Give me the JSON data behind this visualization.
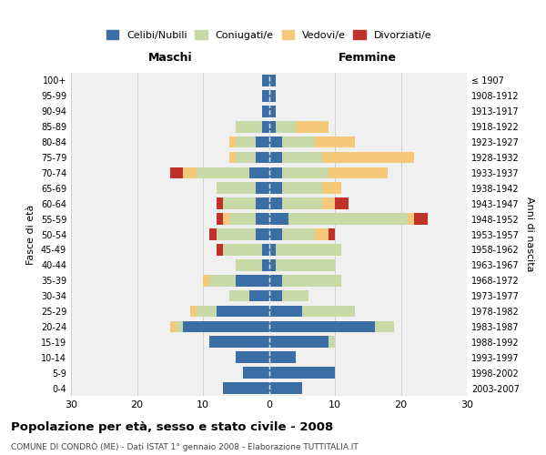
{
  "age_groups": [
    "0-4",
    "5-9",
    "10-14",
    "15-19",
    "20-24",
    "25-29",
    "30-34",
    "35-39",
    "40-44",
    "45-49",
    "50-54",
    "55-59",
    "60-64",
    "65-69",
    "70-74",
    "75-79",
    "80-84",
    "85-89",
    "90-94",
    "95-99",
    "100+"
  ],
  "birth_years": [
    "2003-2007",
    "1998-2002",
    "1993-1997",
    "1988-1992",
    "1983-1987",
    "1978-1982",
    "1973-1977",
    "1968-1972",
    "1963-1967",
    "1958-1962",
    "1953-1957",
    "1948-1952",
    "1943-1947",
    "1938-1942",
    "1933-1937",
    "1928-1932",
    "1923-1927",
    "1918-1922",
    "1913-1917",
    "1908-1912",
    "≤ 1907"
  ],
  "male": {
    "celibe": [
      7,
      4,
      5,
      9,
      13,
      8,
      3,
      5,
      1,
      1,
      2,
      2,
      2,
      2,
      3,
      2,
      2,
      1,
      1,
      1,
      1
    ],
    "coniugato": [
      0,
      0,
      0,
      0,
      1,
      3,
      3,
      4,
      4,
      6,
      6,
      4,
      5,
      6,
      8,
      3,
      3,
      4,
      0,
      0,
      0
    ],
    "vedovo": [
      0,
      0,
      0,
      0,
      1,
      1,
      0,
      1,
      0,
      0,
      0,
      1,
      0,
      0,
      2,
      1,
      1,
      0,
      0,
      0,
      0
    ],
    "divorziato": [
      0,
      0,
      0,
      0,
      0,
      0,
      0,
      0,
      0,
      1,
      1,
      1,
      1,
      0,
      2,
      0,
      0,
      0,
      0,
      0,
      0
    ]
  },
  "female": {
    "nubile": [
      5,
      10,
      4,
      9,
      16,
      5,
      2,
      2,
      1,
      1,
      2,
      3,
      2,
      2,
      2,
      2,
      2,
      1,
      1,
      1,
      1
    ],
    "coniugata": [
      0,
      0,
      0,
      1,
      3,
      8,
      4,
      9,
      9,
      10,
      5,
      18,
      6,
      6,
      7,
      6,
      5,
      3,
      0,
      0,
      0
    ],
    "vedova": [
      0,
      0,
      0,
      0,
      0,
      0,
      0,
      0,
      0,
      0,
      2,
      1,
      2,
      3,
      9,
      14,
      6,
      5,
      0,
      0,
      0
    ],
    "divorziata": [
      0,
      0,
      0,
      0,
      0,
      0,
      0,
      0,
      0,
      0,
      1,
      2,
      2,
      0,
      0,
      0,
      0,
      0,
      0,
      0,
      0
    ]
  },
  "colors": {
    "celibe": "#3a6ea5",
    "coniugato": "#c8d9a8",
    "vedovo": "#f5c97a",
    "divorziato": "#c0312a"
  },
  "title": "Popolazione per età, sesso e stato civile - 2008",
  "subtitle": "COMUNE DI CONDRÒ (ME) - Dati ISTAT 1° gennaio 2008 - Elaborazione TUTTITALIA.IT",
  "xlabel_left": "Maschi",
  "xlabel_right": "Femmine",
  "ylabel_left": "Fasce di età",
  "ylabel_right": "Anni di nascita",
  "xlim": 30,
  "legend_labels": [
    "Celibi/Nubili",
    "Coniugati/e",
    "Vedovi/e",
    "Divorziati/e"
  ],
  "background_color": "#ffffff",
  "plot_bg_color": "#f0f0f0",
  "grid_color": "#cccccc"
}
